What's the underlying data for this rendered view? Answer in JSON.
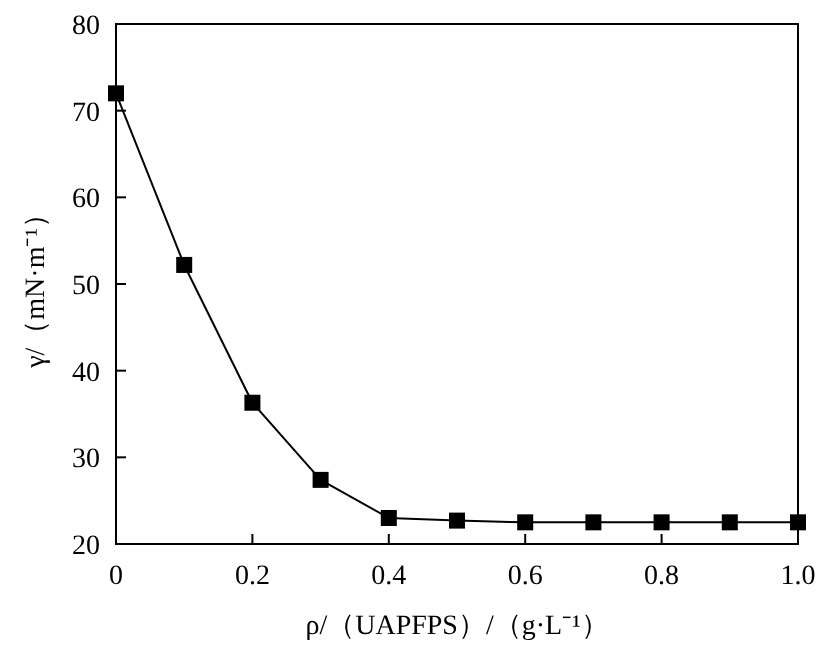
{
  "chart_data": {
    "type": "line",
    "xlabel": "ρ/（UAPFPS）/（g·L⁻¹）",
    "ylabel": "γ/（mN·m⁻¹）",
    "x": [
      0,
      0.1,
      0.2,
      0.3,
      0.4,
      0.5,
      0.6,
      0.7,
      0.8,
      0.9,
      1.0
    ],
    "series": [
      {
        "color": "#000000",
        "values": [
          72,
          52.2,
          36.3,
          27.4,
          23.0,
          22.7,
          22.5,
          22.5,
          22.5,
          22.5,
          22.5
        ]
      }
    ],
    "xlim": [
      0,
      1
    ],
    "ylim": [
      20,
      80
    ],
    "xticks": [
      0,
      0.2,
      0.4,
      0.6,
      0.8,
      {
        "value": 1,
        "label": "1.0"
      }
    ],
    "yticks": [
      20,
      30,
      40,
      50,
      60,
      70,
      80
    ],
    "marker": "square",
    "line_style": "solid"
  }
}
